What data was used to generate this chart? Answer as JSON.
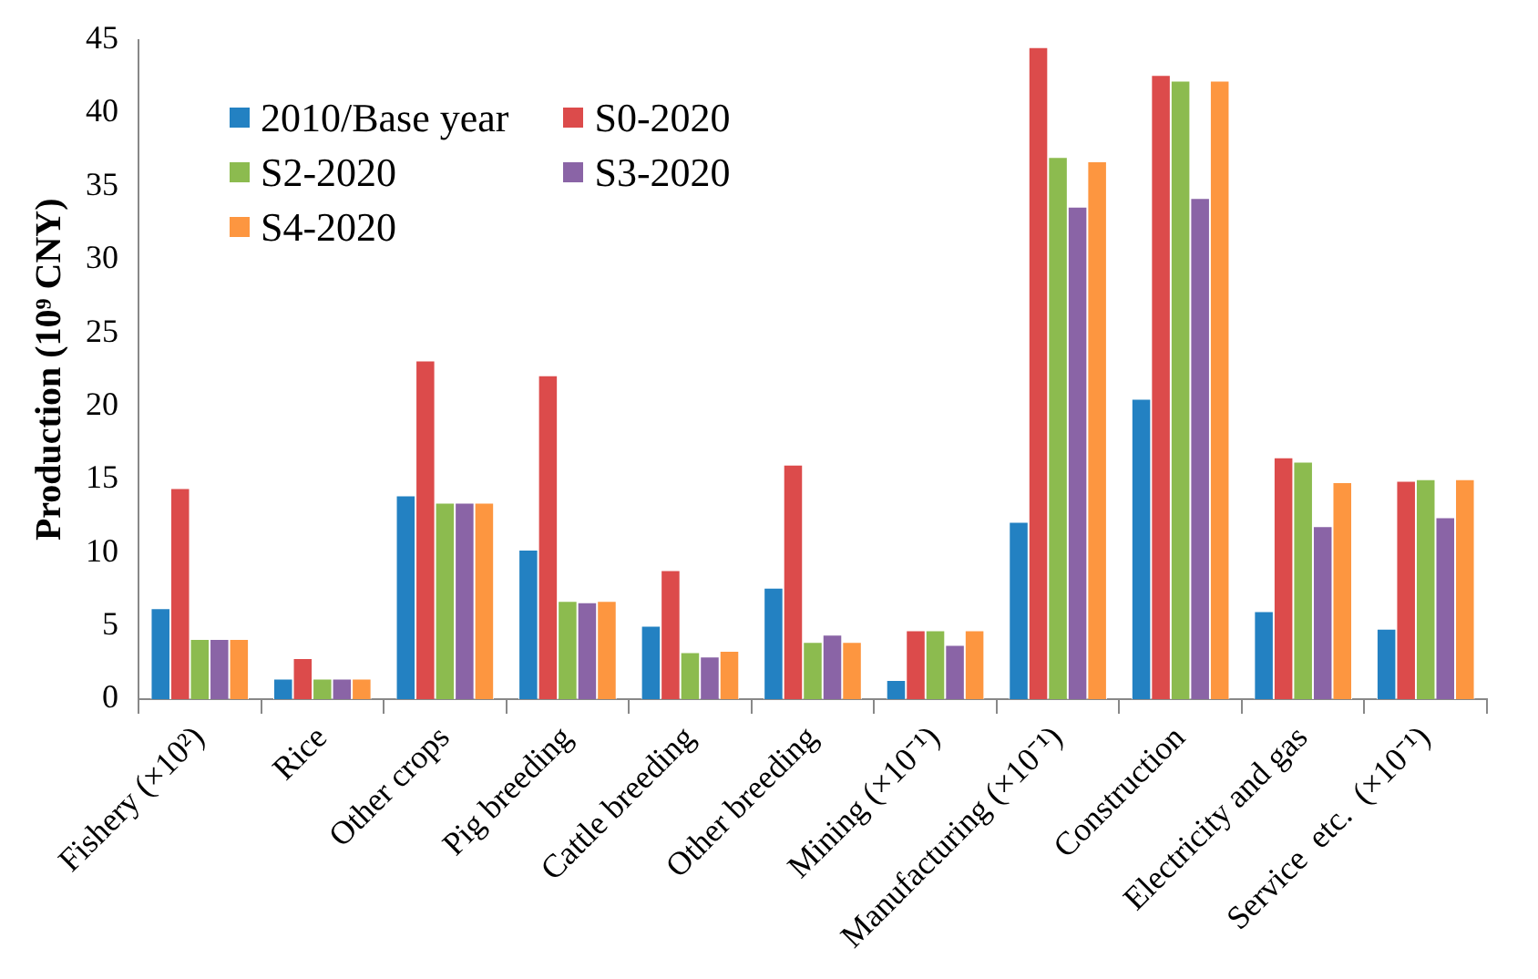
{
  "chart_data": {
    "type": "bar",
    "ylabel": "Production (10⁹ CNY)",
    "categories": [
      "Fishery (×10²)",
      "Rice",
      "Other crops",
      "Pig breeding",
      "Cattle breeding",
      "Other breeding",
      "Mining (×10⁻¹)",
      "Manufacturing (×10⁻¹)",
      "Construction",
      "Electricity and gas",
      "Service  etc.  (×10⁻¹)"
    ],
    "series": [
      {
        "name": "2010/Base year",
        "color": "#2381c2",
        "values": [
          6.2,
          1.4,
          13.9,
          10.2,
          5.0,
          7.6,
          1.3,
          12.1,
          20.5,
          6.0,
          4.8
        ]
      },
      {
        "name": "S0-2020",
        "color": "#dc4b4b",
        "values": [
          14.4,
          2.8,
          23.1,
          22.1,
          8.8,
          16.0,
          4.7,
          44.5,
          42.6,
          16.5,
          14.9
        ]
      },
      {
        "name": "S2-2020",
        "color": "#8cbb4f",
        "values": [
          4.1,
          1.4,
          13.4,
          6.7,
          3.2,
          3.9,
          4.7,
          37.0,
          42.2,
          16.2,
          15.0
        ]
      },
      {
        "name": "S3-2020",
        "color": "#8a64a6",
        "values": [
          4.1,
          1.4,
          13.4,
          6.6,
          2.9,
          4.4,
          3.7,
          33.6,
          34.2,
          11.8,
          12.4
        ]
      },
      {
        "name": "S4-2020",
        "color": "#fd9640",
        "values": [
          4.1,
          1.4,
          13.4,
          6.7,
          3.3,
          3.9,
          4.7,
          36.7,
          42.2,
          14.8,
          15.0
        ]
      }
    ],
    "ylim": [
      0,
      45
    ],
    "yticks": [
      0,
      5,
      10,
      15,
      20,
      25,
      30,
      35,
      40,
      45
    ],
    "legend": "top left"
  }
}
